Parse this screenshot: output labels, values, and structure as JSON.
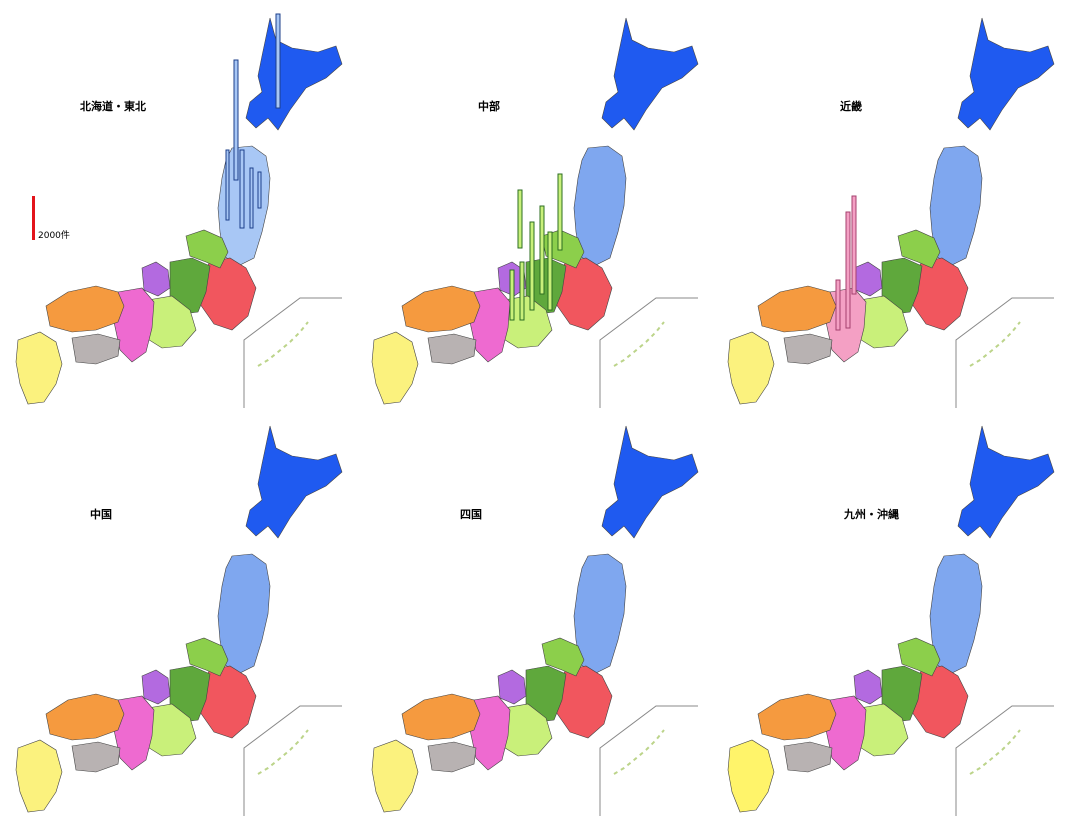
{
  "legend": {
    "label": "2000件",
    "color": "#e3141b"
  },
  "region_colors": {
    "hokkaido": "#1f5af0",
    "tohoku": "#7fa7ef",
    "kanto": "#f1565e",
    "chubu_north": "#8ccf4b",
    "chubu_central": "#5fa83c",
    "chubu_south": "#c9f07a",
    "hokuriku": "#b36ae0",
    "kinki": "#ee6ad0",
    "chugoku": "#f59a3f",
    "shikoku": "#b8b2b2",
    "kyushu": "#fbf27e"
  },
  "panels": [
    {
      "title": "北海道・東北",
      "bar_color": "#1c3f8a",
      "highlight": "#a8c7f5"
    },
    {
      "title": "中部",
      "bar_color": "#2c6e21",
      "highlight": "#c9f07a"
    },
    {
      "title": "近畿",
      "bar_color": "#a4416e",
      "highlight": "#f4a0c4"
    },
    {
      "title": "中国",
      "bar_color": "#8a4610",
      "highlight": "#f59a3f"
    },
    {
      "title": "四国",
      "bar_color": "#5a5a5a",
      "highlight": "#b8b2b2"
    },
    {
      "title": "九州・沖縄",
      "bar_color": "#6b6410",
      "highlight": "#fff46a"
    }
  ]
}
